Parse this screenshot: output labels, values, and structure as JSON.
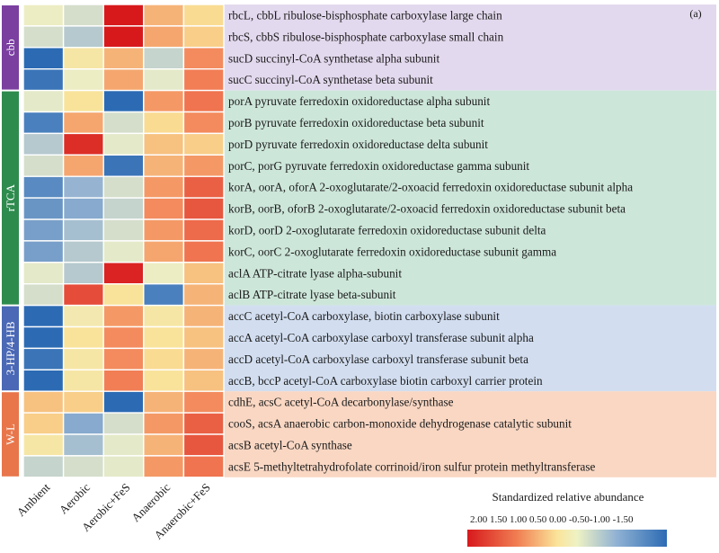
{
  "chart_data": {
    "type": "heatmap",
    "panel_label": "(a)",
    "columns": [
      "Ambient",
      "Aerobic",
      "Aerobic+FeS",
      "Anaerobic",
      "Anaerobic+FeS"
    ],
    "legend": {
      "title": "Standardized relative abundance",
      "tick_text": "2.00 1.50 1.00 0.50 0.00 -0.50-1.00  -1.50",
      "range": [
        2.0,
        -1.5
      ]
    },
    "groups": [
      {
        "name": "cbb",
        "color": "#7b3fa0",
        "band": "#e3d9ee",
        "rows": [
          0,
          3
        ]
      },
      {
        "name": "rTCA",
        "color": "#2e8b4e",
        "band": "#cde6da",
        "rows": [
          4,
          13
        ]
      },
      {
        "name": "3-HP/4-HB",
        "color": "#4a68b5",
        "band": "#d2def0",
        "rows": [
          14,
          17
        ]
      },
      {
        "name": "W-L",
        "color": "#e8764a",
        "band": "#f9d7c3",
        "rows": [
          18,
          21
        ]
      }
    ],
    "rows": [
      {
        "label": "rbcL, cbbL ribulose-bisphosphate carboxylase large chain",
        "values": [
          -0.2,
          -0.4,
          2.0,
          0.6,
          0.3
        ]
      },
      {
        "label": "rbcS, cbbS ribulose-bisphosphate carboxylase small chain",
        "values": [
          -0.4,
          -0.6,
          2.0,
          0.7,
          0.4
        ]
      },
      {
        "label": "sucD succinyl-CoA synthetase alpha subunit",
        "values": [
          -1.5,
          0.1,
          0.6,
          -0.5,
          0.9
        ]
      },
      {
        "label": "sucC succinyl-CoA synthetase beta subunit",
        "values": [
          -1.4,
          -0.2,
          0.7,
          -0.3,
          1.0
        ]
      },
      {
        "label": "porA pyruvate ferredoxin oxidoreductase alpha subunit",
        "values": [
          -0.3,
          0.2,
          -1.5,
          0.8,
          1.1
        ]
      },
      {
        "label": "porB pyruvate ferredoxin oxidoreductase beta subunit",
        "values": [
          -1.3,
          0.7,
          -0.4,
          0.3,
          0.9
        ]
      },
      {
        "label": "porD pyruvate ferredoxin oxidoreductase delta subunit",
        "values": [
          -0.6,
          1.8,
          -0.3,
          0.5,
          0.4
        ]
      },
      {
        "label": "porC, porG pyruvate ferredoxin oxidoreductase gamma subunit",
        "values": [
          -0.4,
          0.7,
          -1.4,
          0.6,
          0.8
        ]
      },
      {
        "label": "korA, oorA, oforA 2-oxoglutarate/2-oxoacid ferredoxin oxidoreductase subunit alpha",
        "values": [
          -1.2,
          -0.8,
          -0.4,
          0.8,
          1.3
        ]
      },
      {
        "label": "korB, oorB, oforB 2-oxoglutarate/2-oxoacid ferredoxin oxidoreductase subunit beta",
        "values": [
          -1.1,
          -0.9,
          -0.5,
          0.9,
          1.4
        ]
      },
      {
        "label": "korD, oorD 2-oxoglutarate ferredoxin oxidoreductase subunit delta",
        "values": [
          -1.0,
          -0.7,
          -0.4,
          0.8,
          1.2
        ]
      },
      {
        "label": "korC, oorC 2-oxoglutarate ferredoxin oxidoreductase subunit gamma",
        "values": [
          -1.0,
          -0.6,
          -0.3,
          0.7,
          1.1
        ]
      },
      {
        "label": "aclA ATP-citrate lyase alpha-subunit",
        "values": [
          -0.3,
          -0.6,
          1.9,
          -0.2,
          0.5
        ]
      },
      {
        "label": "aclB ATP-citrate lyase beta-subunit",
        "values": [
          -0.4,
          1.5,
          0.2,
          -1.3,
          0.6
        ]
      },
      {
        "label": "accC acetyl-CoA carboxylase, biotin carboxylase subunit",
        "values": [
          -1.5,
          0.0,
          0.8,
          0.1,
          0.6
        ]
      },
      {
        "label": "accA acetyl-CoA carboxylase carboxyl transferase subunit alpha",
        "values": [
          -1.5,
          0.2,
          0.9,
          0.2,
          0.5
        ]
      },
      {
        "label": "accD acetyl-CoA carboxylase carboxyl transferase subunit beta",
        "values": [
          -1.4,
          0.1,
          0.9,
          0.3,
          0.6
        ]
      },
      {
        "label": "accB, bccP acetyl-CoA carboxylase biotin carboxyl carrier protein",
        "values": [
          -1.5,
          0.1,
          1.0,
          0.2,
          0.5
        ]
      },
      {
        "label": "cdhE, acsC acetyl-CoA decarbonylase/synthase",
        "values": [
          0.5,
          0.4,
          -1.5,
          0.6,
          0.9
        ]
      },
      {
        "label": "cooS, acsA anaerobic carbon-monoxide dehydrogenase catalytic subunit",
        "values": [
          0.4,
          -0.9,
          -0.4,
          0.8,
          1.3
        ]
      },
      {
        "label": "acsB acetyl-CoA synthase",
        "values": [
          0.1,
          -0.7,
          -0.3,
          0.6,
          1.4
        ]
      },
      {
        "label": "acsE 5-methyltetrahydrofolate corrinoid/iron sulfur protein methyltransferase",
        "values": [
          -0.5,
          -0.4,
          -0.3,
          0.8,
          1.1
        ]
      }
    ]
  }
}
